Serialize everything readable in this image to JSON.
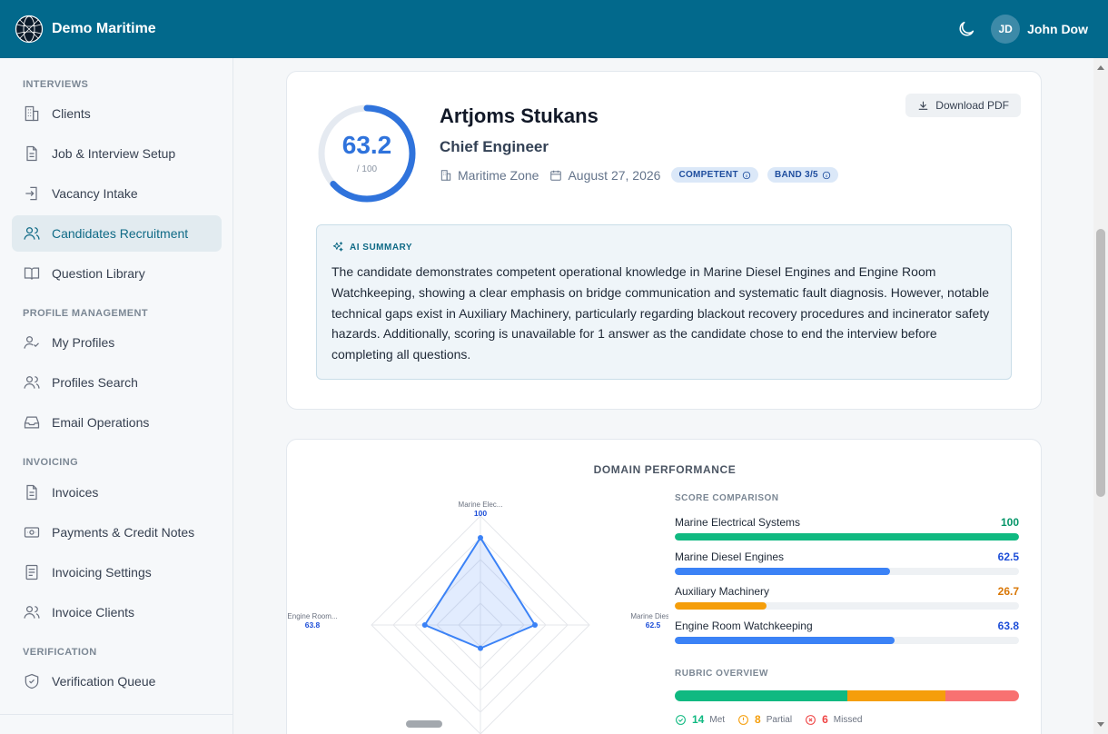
{
  "header": {
    "brand": "Demo Maritime",
    "user_initials": "JD",
    "user_name": "John Dow"
  },
  "sidebar": {
    "sections": [
      {
        "title": "INTERVIEWS",
        "items": [
          {
            "label": "Clients",
            "icon": "building-icon"
          },
          {
            "label": "Job & Interview Setup",
            "icon": "document-icon"
          },
          {
            "label": "Vacancy Intake",
            "icon": "login-icon"
          },
          {
            "label": "Candidates Recruitment",
            "icon": "users-icon",
            "active": true
          },
          {
            "label": "Question Library",
            "icon": "book-icon"
          }
        ]
      },
      {
        "title": "PROFILE MANAGEMENT",
        "items": [
          {
            "label": "My Profiles",
            "icon": "user-check-icon"
          },
          {
            "label": "Profiles Search",
            "icon": "users-icon"
          },
          {
            "label": "Email Operations",
            "icon": "inbox-icon"
          }
        ]
      },
      {
        "title": "INVOICING",
        "items": [
          {
            "label": "Invoices",
            "icon": "document-icon"
          },
          {
            "label": "Payments & Credit Notes",
            "icon": "banknote-icon"
          },
          {
            "label": "Invoicing Settings",
            "icon": "list-icon"
          },
          {
            "label": "Invoice Clients",
            "icon": "users-icon"
          }
        ]
      },
      {
        "title": "VERIFICATION",
        "items": [
          {
            "label": "Verification Queue",
            "icon": "shield-check-icon"
          }
        ]
      }
    ]
  },
  "candidate": {
    "score": "63.2",
    "score_max": "/ 100",
    "score_fraction": 0.632,
    "name": "Artjoms Stukans",
    "role": "Chief Engineer",
    "company": "Maritime Zone",
    "date": "August 27, 2026",
    "badge_level": "COMPETENT",
    "badge_band": "BAND 3/5",
    "download_label": "Download PDF"
  },
  "summary": {
    "title": "AI SUMMARY",
    "text": "The candidate demonstrates competent operational knowledge in Marine Diesel Engines and Engine Room Watchkeeping, showing a clear emphasis on bridge communication and systematic fault diagnosis. However, notable technical gaps exist in Auxiliary Machinery, particularly regarding blackout recovery procedures and incinerator safety hazards. Additionally, scoring is unavailable for 1 answer as the candidate chose to end the interview before completing all questions."
  },
  "domain_performance": {
    "title": "DOMAIN PERFORMANCE",
    "radar_labels": [
      "Marine Elec...",
      "Marine Dies...",
      "Auxiliary Machinery",
      "Engine Room..."
    ],
    "score_comparison_title": "SCORE COMPARISON",
    "rubric_title": "RUBRIC OVERVIEW",
    "colors": {
      "high": "#10b981",
      "mid": "#3b82f6",
      "low": "#f59e0b",
      "missed": "#f87171"
    },
    "rubric": [
      {
        "count": "14",
        "label": "Met",
        "color": "#10b981"
      },
      {
        "count": "8",
        "label": "Partial",
        "color": "#f59e0b"
      },
      {
        "count": "6",
        "label": "Missed",
        "color": "#f87171"
      }
    ]
  },
  "chart_data": {
    "type": "radar",
    "title": "DOMAIN PERFORMANCE",
    "categories": [
      "Marine Electrical Systems",
      "Marine Diesel Engines",
      "Auxiliary Machinery",
      "Engine Room Watchkeeping"
    ],
    "values": [
      100,
      62.5,
      26.7,
      63.8
    ],
    "value_labels": [
      "100",
      "62.5",
      "26.7",
      "63.8"
    ],
    "range": [
      0,
      100
    ]
  }
}
